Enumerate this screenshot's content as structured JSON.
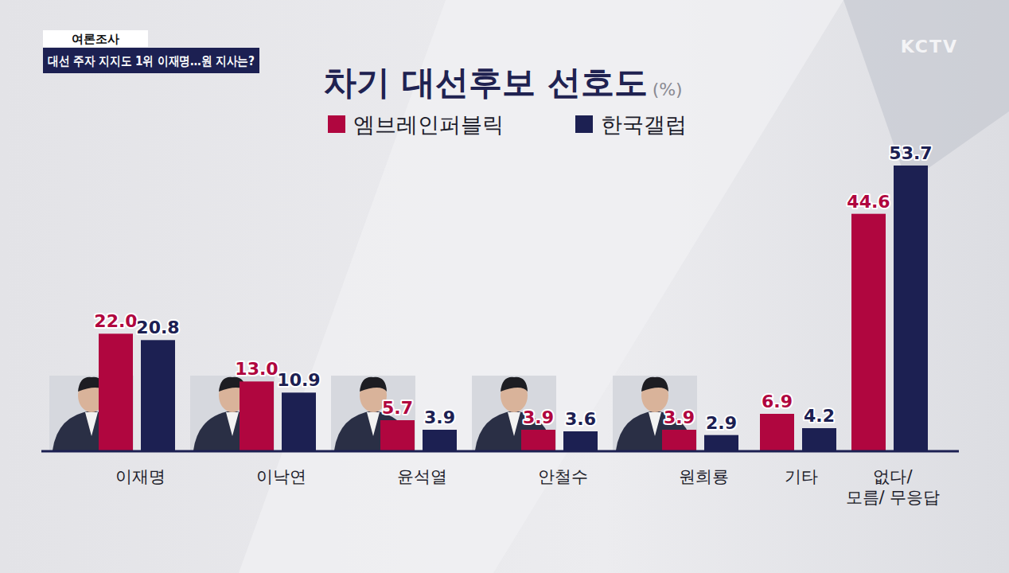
{
  "header": {
    "tag": "여론조사",
    "headline": "대선 주자 지지도 1위 이재명…원 지사는?",
    "logo": "KCTV"
  },
  "chart_data": {
    "type": "bar",
    "title": "차기 대선후보 선호도",
    "ylabel": "(%)",
    "categories": [
      "이재명",
      "이낙연",
      "윤석열",
      "안철수",
      "원희룡",
      "기타",
      "없다/\n모름/ 무응답"
    ],
    "series": [
      {
        "name": "엠브레인퍼블릭",
        "color": "#b0063f",
        "values": [
          22.0,
          13.0,
          5.7,
          3.9,
          3.9,
          6.9,
          44.6
        ],
        "value_labels": [
          "22.0",
          "13.0",
          "5.7",
          "3.9",
          "3.9",
          "6.9",
          "44.6"
        ]
      },
      {
        "name": "한국갤럽",
        "color": "#1c2052",
        "values": [
          20.8,
          10.9,
          3.9,
          3.6,
          2.9,
          4.2,
          53.7
        ],
        "value_labels": [
          "20.8",
          "10.9",
          "3.9",
          "3.6",
          "2.9",
          "4.2",
          "53.7"
        ]
      }
    ],
    "ylim": [
      0,
      60
    ],
    "grid": false,
    "legend": "top",
    "data_labels": true,
    "tick_labels": "x"
  }
}
